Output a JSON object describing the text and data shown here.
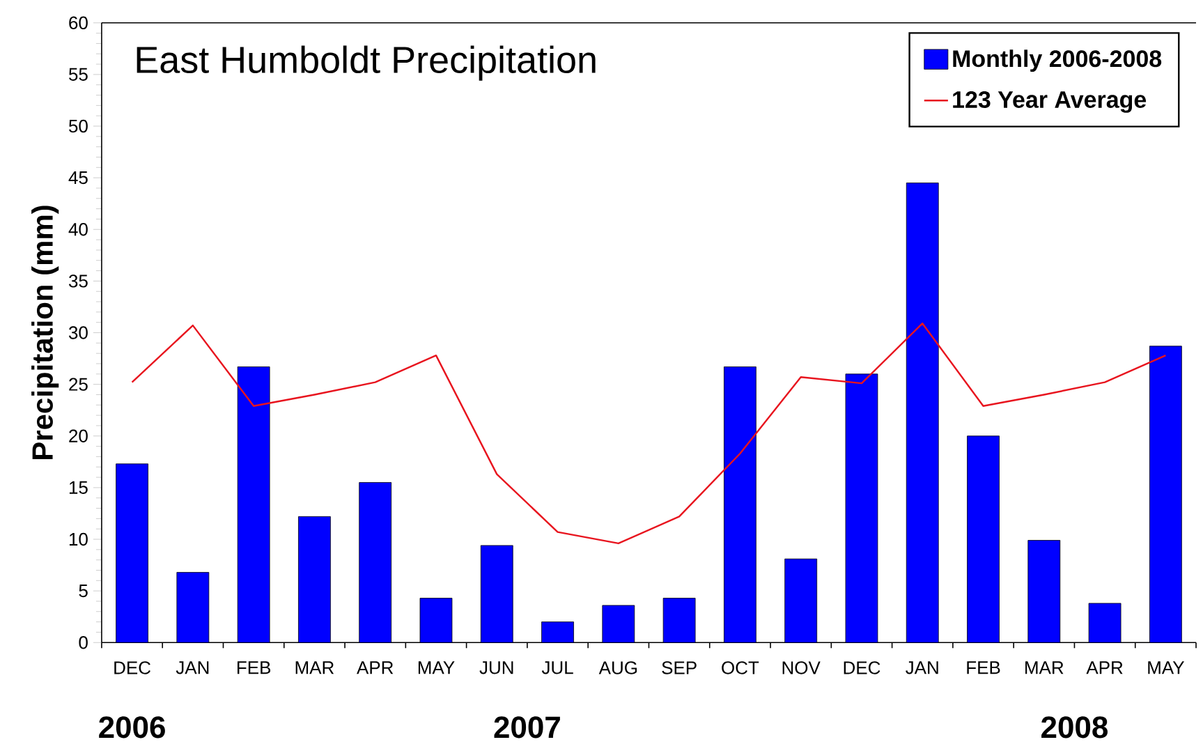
{
  "chart_data": {
    "type": "bar",
    "title": "East Humboldt Precipitation",
    "ylabel": "Precipitation (mm)",
    "categories": [
      "DEC",
      "JAN",
      "FEB",
      "MAR",
      "APR",
      "MAY",
      "JUN",
      "JUL",
      "AUG",
      "SEP",
      "OCT",
      "NOV",
      "DEC",
      "JAN",
      "FEB",
      "MAR",
      "APR",
      "MAY"
    ],
    "series": [
      {
        "name": "Monthly 2006-2008",
        "color": "#0000ff",
        "values": [
          17.3,
          6.8,
          26.7,
          12.2,
          15.5,
          4.3,
          9.4,
          2.0,
          3.6,
          4.3,
          26.7,
          8.1,
          26.0,
          44.5,
          20.0,
          9.9,
          3.8,
          28.7
        ]
      },
      {
        "name": "123 Year Average",
        "type": "line",
        "color": "#e8141e",
        "values": [
          25.2,
          30.7,
          22.9,
          24.0,
          25.2,
          27.8,
          16.3,
          10.7,
          9.6,
          12.2,
          18.3,
          25.7,
          25.1,
          30.9,
          22.9,
          24.0,
          25.2,
          27.8
        ]
      }
    ],
    "ylim": [
      0,
      60
    ],
    "yticks": [
      0,
      5,
      10,
      15,
      20,
      25,
      30,
      35,
      40,
      45,
      50,
      55,
      60
    ],
    "legend": "top right",
    "marker": "none",
    "annotations": [
      "2006",
      "2007",
      "2008"
    ]
  }
}
